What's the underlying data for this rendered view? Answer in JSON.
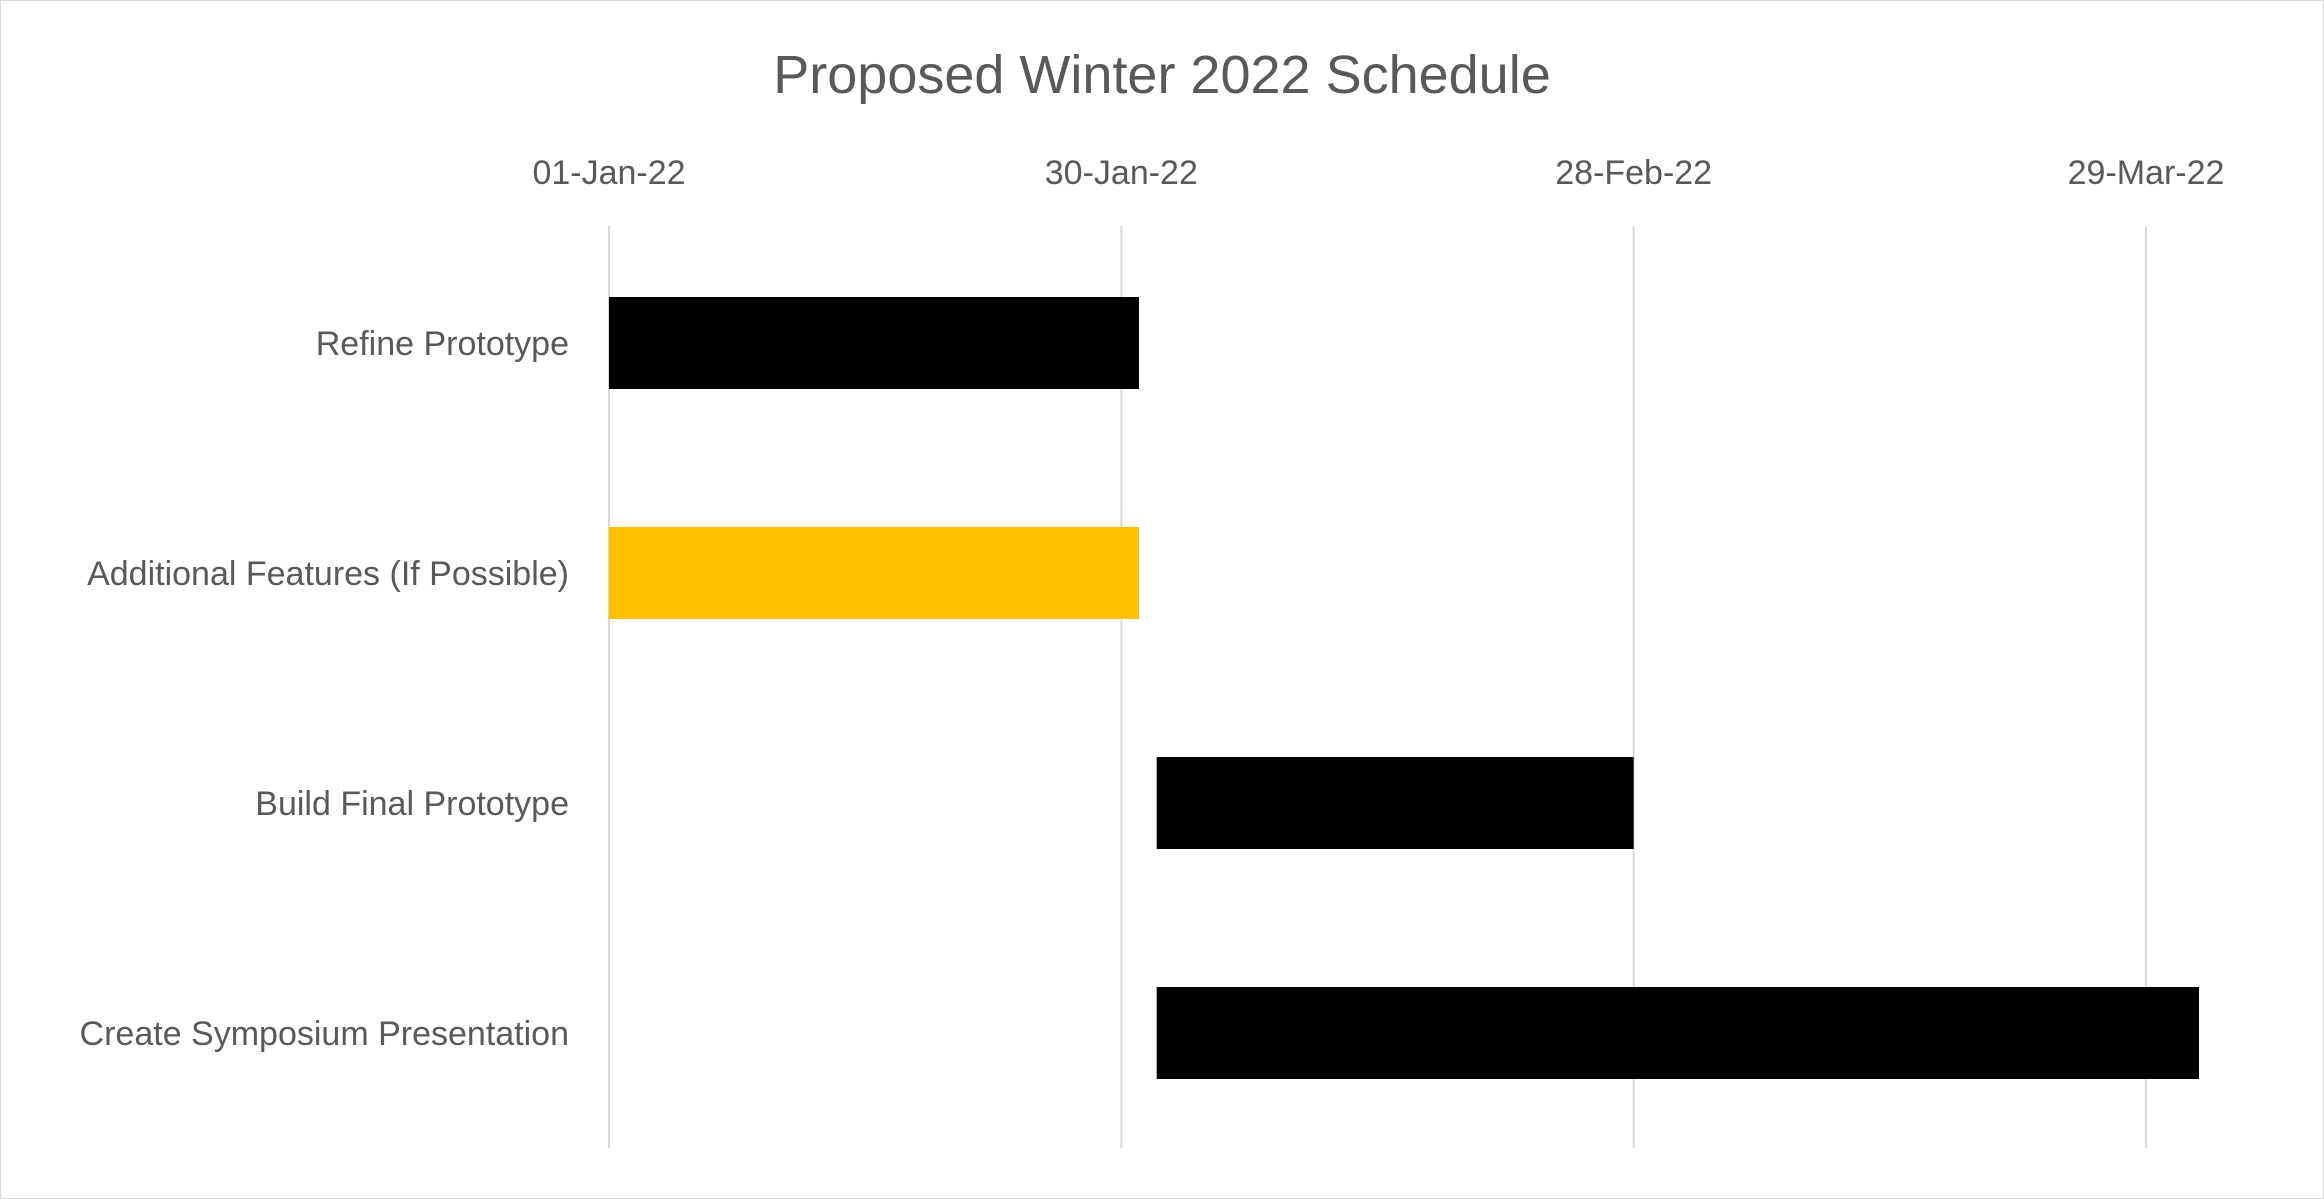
{
  "chart_data": {
    "type": "bar",
    "orientation": "horizontal",
    "stacked_gantt": true,
    "title": "Proposed Winter 2022 Schedule",
    "x_axis": {
      "position": "top",
      "min": "2022-01-01",
      "max": "2022-04-06",
      "ticks": [
        {
          "value": "2022-01-01",
          "label": "01-Jan-22"
        },
        {
          "value": "2022-01-30",
          "label": "30-Jan-22"
        },
        {
          "value": "2022-02-28",
          "label": "28-Feb-22"
        },
        {
          "value": "2022-03-29",
          "label": "29-Mar-22"
        }
      ],
      "grid": true
    },
    "categories": [
      "Refine Prototype",
      "Additional Features (If Possible)",
      "Build Final Prototype",
      "Create Symposium Presentation"
    ],
    "tasks": [
      {
        "name": "Refine Prototype",
        "start": "2022-01-01",
        "end": "2022-01-31",
        "color": "#000000"
      },
      {
        "name": "Additional Features (If Possible)",
        "start": "2022-01-01",
        "end": "2022-01-31",
        "color": "#ffc000"
      },
      {
        "name": "Build Final Prototype",
        "start": "2022-02-01",
        "end": "2022-02-28",
        "color": "#000000"
      },
      {
        "name": "Create Symposium Presentation",
        "start": "2022-02-01",
        "end": "2022-04-01",
        "color": "#000000"
      }
    ],
    "legend": "none"
  }
}
